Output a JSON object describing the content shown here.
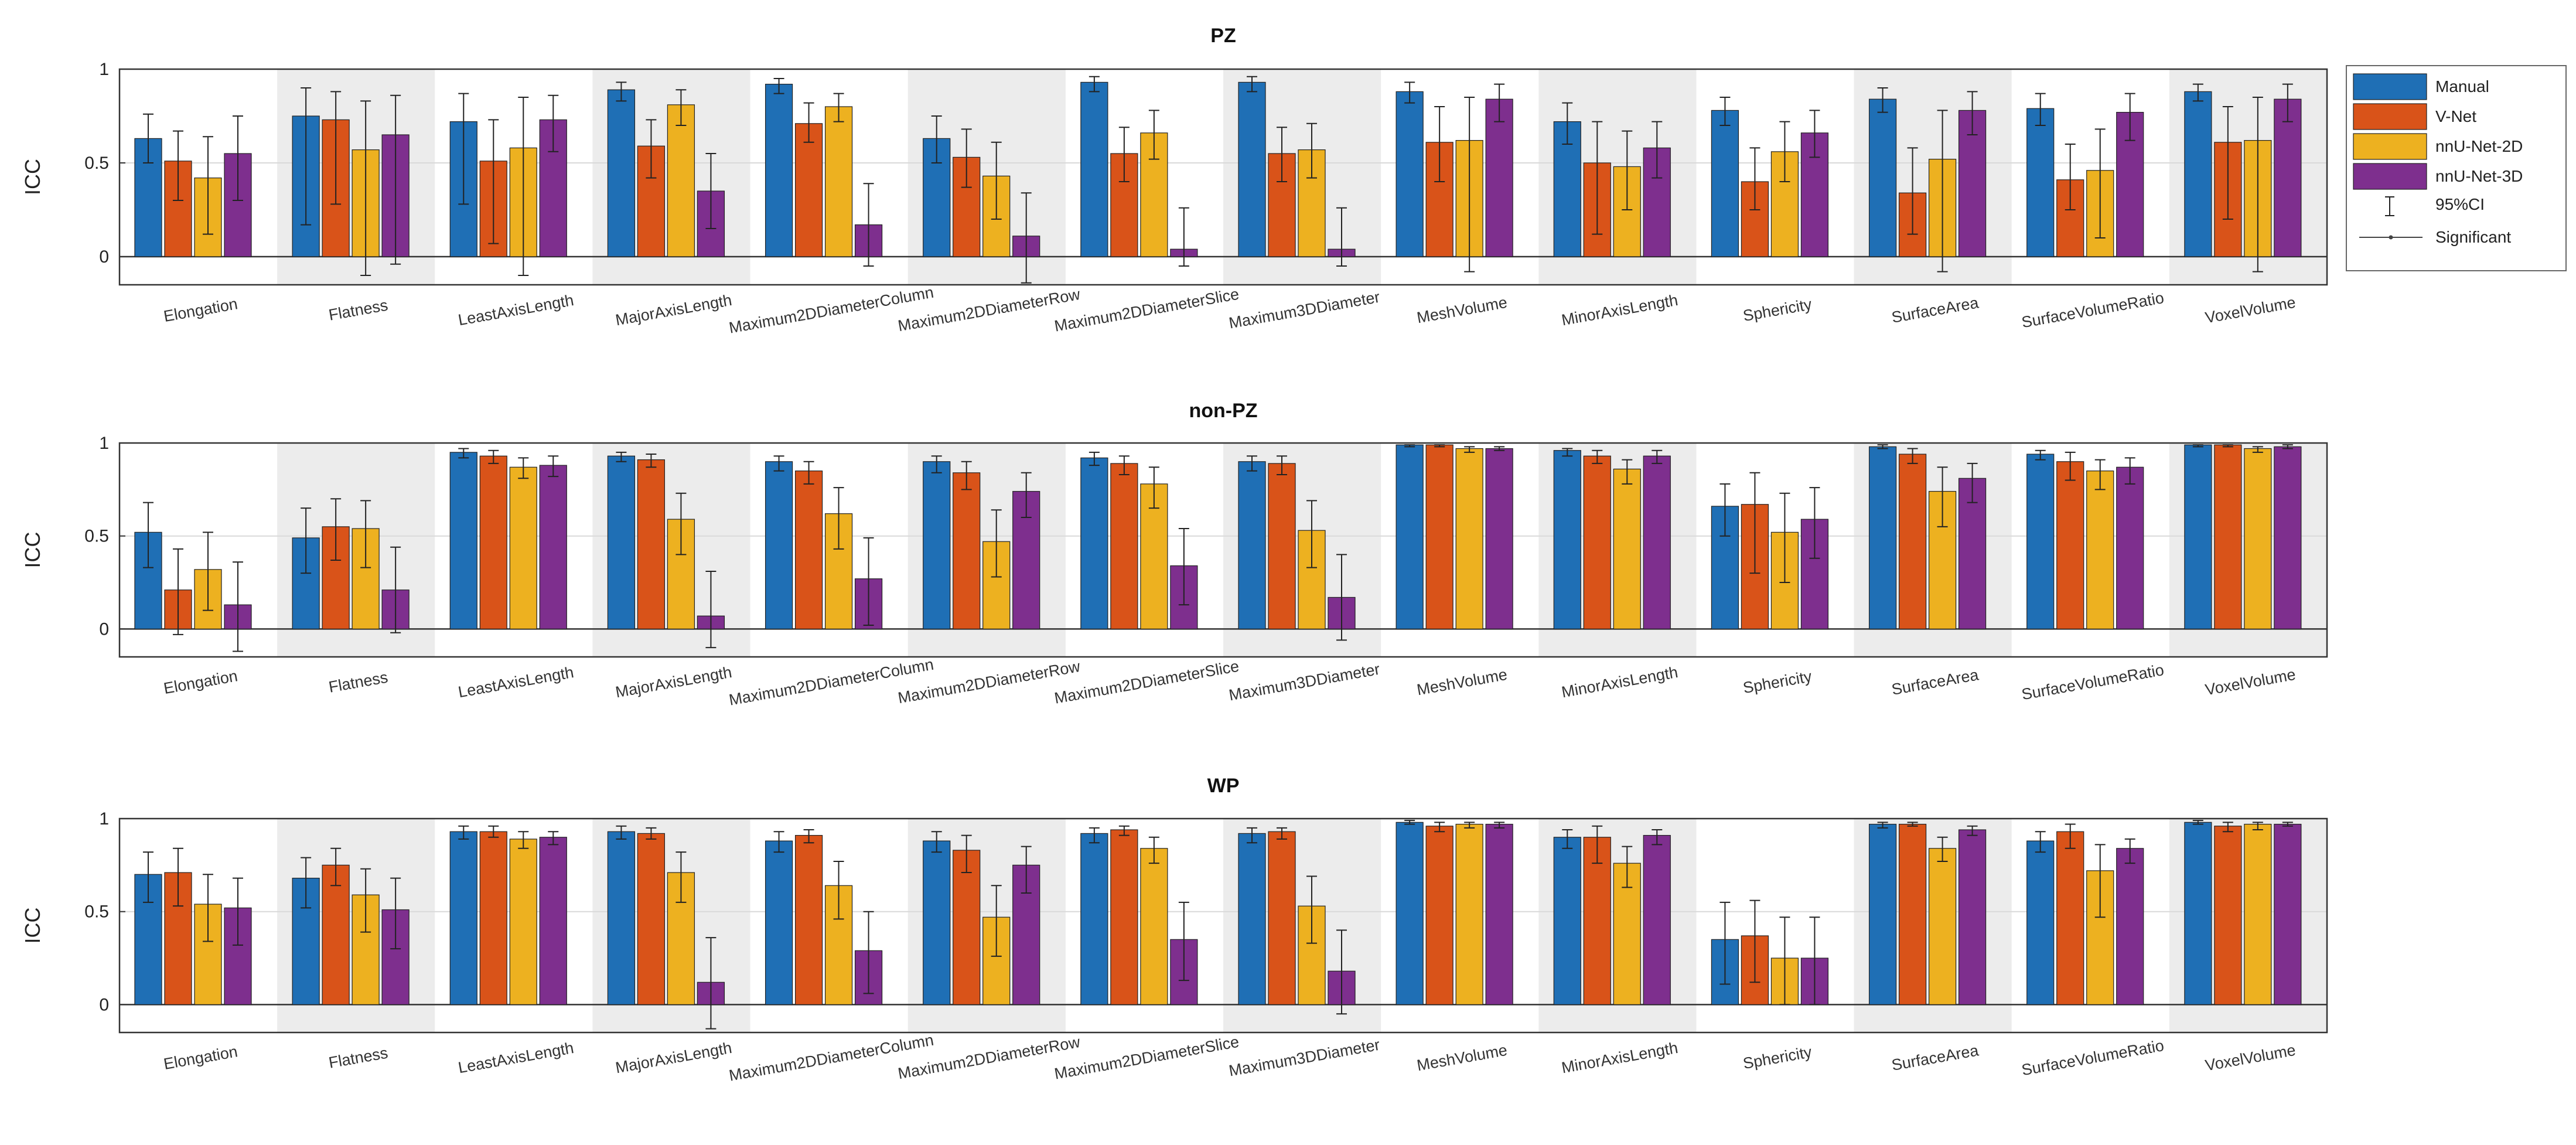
{
  "colors": {
    "Manual": "#1f6fb5",
    "V-Net": "#d95319",
    "nnU-Net-2D": "#edb120",
    "nnU-Net-3D": "#7e2f8e",
    "band": "#ececec"
  },
  "legend": {
    "entries": [
      "Manual",
      "V-Net",
      "nnU-Net-2D",
      "nnU-Net-3D"
    ],
    "ci_label": "95%CI",
    "sig_label": "Significant"
  },
  "chart_data": [
    {
      "type": "bar",
      "title": "PZ",
      "ylabel": "ICC",
      "ylim": [
        -0.15,
        1
      ],
      "yticks": [
        "0",
        "0.5",
        "1"
      ],
      "categories": [
        "Elongation",
        "Flatness",
        "LeastAxisLength",
        "MajorAxisLength",
        "Maximum2DDiameterColumn",
        "Maximum2DDiameterRow",
        "Maximum2DDiameterSlice",
        "Maximum3DDiameter",
        "MeshVolume",
        "MinorAxisLength",
        "Sphericity",
        "SurfaceArea",
        "SurfaceVolumeRatio",
        "VoxelVolume"
      ],
      "series": [
        {
          "name": "Manual",
          "values": [
            0.63,
            0.75,
            0.72,
            0.89,
            0.92,
            0.63,
            0.93,
            0.93,
            0.88,
            0.72,
            0.78,
            0.84,
            0.79,
            0.88
          ],
          "ci": [
            [
              0.5,
              0.76
            ],
            [
              0.17,
              0.9
            ],
            [
              0.28,
              0.87
            ],
            [
              0.83,
              0.93
            ],
            [
              0.87,
              0.95
            ],
            [
              0.5,
              0.75
            ],
            [
              0.88,
              0.96
            ],
            [
              0.88,
              0.96
            ],
            [
              0.82,
              0.93
            ],
            [
              0.6,
              0.82
            ],
            [
              0.7,
              0.85
            ],
            [
              0.77,
              0.9
            ],
            [
              0.7,
              0.87
            ],
            [
              0.83,
              0.92
            ]
          ]
        },
        {
          "name": "V-Net",
          "values": [
            0.51,
            0.73,
            0.51,
            0.59,
            0.71,
            0.53,
            0.55,
            0.55,
            0.61,
            0.5,
            0.4,
            0.34,
            0.41,
            0.61
          ],
          "ci": [
            [
              0.3,
              0.67
            ],
            [
              0.28,
              0.88
            ],
            [
              0.07,
              0.73
            ],
            [
              0.42,
              0.73
            ],
            [
              0.61,
              0.82
            ],
            [
              0.37,
              0.68
            ],
            [
              0.4,
              0.69
            ],
            [
              0.4,
              0.69
            ],
            [
              0.4,
              0.8
            ],
            [
              0.12,
              0.72
            ],
            [
              0.25,
              0.58
            ],
            [
              0.12,
              0.58
            ],
            [
              0.25,
              0.6
            ],
            [
              0.2,
              0.8
            ]
          ]
        },
        {
          "name": "nnU-Net-2D",
          "values": [
            0.42,
            0.57,
            0.58,
            0.81,
            0.8,
            0.43,
            0.66,
            0.57,
            0.62,
            0.48,
            0.56,
            0.52,
            0.46,
            0.62
          ],
          "ci": [
            [
              0.12,
              0.64
            ],
            [
              -0.1,
              0.83
            ],
            [
              -0.1,
              0.85
            ],
            [
              0.7,
              0.89
            ],
            [
              0.72,
              0.87
            ],
            [
              0.2,
              0.61
            ],
            [
              0.52,
              0.78
            ],
            [
              0.42,
              0.71
            ],
            [
              -0.08,
              0.85
            ],
            [
              0.25,
              0.67
            ],
            [
              0.4,
              0.72
            ],
            [
              -0.08,
              0.78
            ],
            [
              0.1,
              0.68
            ],
            [
              -0.08,
              0.85
            ]
          ]
        },
        {
          "name": "nnU-Net-3D",
          "values": [
            0.55,
            0.65,
            0.73,
            0.35,
            0.17,
            0.11,
            0.04,
            0.04,
            0.84,
            0.58,
            0.66,
            0.78,
            0.77,
            0.84
          ],
          "ci": [
            [
              0.3,
              0.75
            ],
            [
              -0.04,
              0.86
            ],
            [
              0.56,
              0.86
            ],
            [
              0.15,
              0.55
            ],
            [
              -0.05,
              0.39
            ],
            [
              -0.14,
              0.34
            ],
            [
              -0.05,
              0.26
            ],
            [
              -0.05,
              0.26
            ],
            [
              0.72,
              0.92
            ],
            [
              0.42,
              0.72
            ],
            [
              0.53,
              0.78
            ],
            [
              0.65,
              0.88
            ],
            [
              0.62,
              0.87
            ],
            [
              0.72,
              0.92
            ]
          ]
        }
      ]
    },
    {
      "type": "bar",
      "title": "non-PZ",
      "ylabel": "ICC",
      "ylim": [
        -0.15,
        1
      ],
      "yticks": [
        "0",
        "0.5",
        "1"
      ],
      "categories": [
        "Elongation",
        "Flatness",
        "LeastAxisLength",
        "MajorAxisLength",
        "Maximum2DDiameterColumn",
        "Maximum2DDiameterRow",
        "Maximum2DDiameterSlice",
        "Maximum3DDiameter",
        "MeshVolume",
        "MinorAxisLength",
        "Sphericity",
        "SurfaceArea",
        "SurfaceVolumeRatio",
        "VoxelVolume"
      ],
      "series": [
        {
          "name": "Manual",
          "values": [
            0.52,
            0.49,
            0.95,
            0.93,
            0.9,
            0.9,
            0.92,
            0.9,
            0.99,
            0.96,
            0.66,
            0.98,
            0.94,
            0.99
          ],
          "ci": [
            [
              0.33,
              0.68
            ],
            [
              0.3,
              0.65
            ],
            [
              0.92,
              0.97
            ],
            [
              0.9,
              0.95
            ],
            [
              0.85,
              0.93
            ],
            [
              0.84,
              0.93
            ],
            [
              0.88,
              0.95
            ],
            [
              0.85,
              0.93
            ],
            [
              0.98,
              0.99
            ],
            [
              0.93,
              0.97
            ],
            [
              0.5,
              0.78
            ],
            [
              0.97,
              0.99
            ],
            [
              0.91,
              0.96
            ],
            [
              0.98,
              0.99
            ]
          ]
        },
        {
          "name": "V-Net",
          "values": [
            0.21,
            0.55,
            0.93,
            0.91,
            0.85,
            0.84,
            0.89,
            0.89,
            0.99,
            0.93,
            0.67,
            0.94,
            0.9,
            0.99
          ],
          "ci": [
            [
              -0.03,
              0.43
            ],
            [
              0.37,
              0.7
            ],
            [
              0.89,
              0.96
            ],
            [
              0.87,
              0.94
            ],
            [
              0.78,
              0.9
            ],
            [
              0.75,
              0.9
            ],
            [
              0.83,
              0.93
            ],
            [
              0.83,
              0.93
            ],
            [
              0.98,
              0.99
            ],
            [
              0.89,
              0.96
            ],
            [
              0.3,
              0.84
            ],
            [
              0.89,
              0.97
            ],
            [
              0.8,
              0.95
            ],
            [
              0.98,
              0.99
            ]
          ]
        },
        {
          "name": "nnU-Net-2D",
          "values": [
            0.32,
            0.54,
            0.87,
            0.59,
            0.62,
            0.47,
            0.78,
            0.53,
            0.97,
            0.86,
            0.52,
            0.74,
            0.85,
            0.97
          ],
          "ci": [
            [
              0.1,
              0.52
            ],
            [
              0.33,
              0.69
            ],
            [
              0.81,
              0.92
            ],
            [
              0.4,
              0.73
            ],
            [
              0.43,
              0.76
            ],
            [
              0.28,
              0.64
            ],
            [
              0.65,
              0.87
            ],
            [
              0.33,
              0.69
            ],
            [
              0.95,
              0.98
            ],
            [
              0.78,
              0.91
            ],
            [
              0.25,
              0.73
            ],
            [
              0.55,
              0.87
            ],
            [
              0.75,
              0.91
            ],
            [
              0.95,
              0.98
            ]
          ]
        },
        {
          "name": "nnU-Net-3D",
          "values": [
            0.13,
            0.21,
            0.88,
            0.07,
            0.27,
            0.74,
            0.34,
            0.17,
            0.97,
            0.93,
            0.59,
            0.81,
            0.87,
            0.98
          ],
          "ci": [
            [
              -0.12,
              0.36
            ],
            [
              -0.02,
              0.44
            ],
            [
              0.82,
              0.93
            ],
            [
              -0.1,
              0.31
            ],
            [
              0.02,
              0.49
            ],
            [
              0.6,
              0.84
            ],
            [
              0.13,
              0.54
            ],
            [
              -0.06,
              0.4
            ],
            [
              0.96,
              0.98
            ],
            [
              0.89,
              0.96
            ],
            [
              0.38,
              0.76
            ],
            [
              0.68,
              0.89
            ],
            [
              0.78,
              0.92
            ],
            [
              0.97,
              0.99
            ]
          ]
        }
      ]
    },
    {
      "type": "bar",
      "title": "WP",
      "ylabel": "ICC",
      "ylim": [
        -0.15,
        1
      ],
      "yticks": [
        "0",
        "0.5",
        "1"
      ],
      "categories": [
        "Elongation",
        "Flatness",
        "LeastAxisLength",
        "MajorAxisLength",
        "Maximum2DDiameterColumn",
        "Maximum2DDiameterRow",
        "Maximum2DDiameterSlice",
        "Maximum3DDiameter",
        "MeshVolume",
        "MinorAxisLength",
        "Sphericity",
        "SurfaceArea",
        "SurfaceVolumeRatio",
        "VoxelVolume"
      ],
      "series": [
        {
          "name": "Manual",
          "values": [
            0.7,
            0.68,
            0.93,
            0.93,
            0.88,
            0.88,
            0.92,
            0.92,
            0.98,
            0.9,
            0.35,
            0.97,
            0.88,
            0.98
          ],
          "ci": [
            [
              0.55,
              0.82
            ],
            [
              0.52,
              0.79
            ],
            [
              0.89,
              0.96
            ],
            [
              0.89,
              0.96
            ],
            [
              0.82,
              0.93
            ],
            [
              0.82,
              0.93
            ],
            [
              0.87,
              0.95
            ],
            [
              0.87,
              0.95
            ],
            [
              0.97,
              0.99
            ],
            [
              0.84,
              0.94
            ],
            [
              0.11,
              0.55
            ],
            [
              0.95,
              0.98
            ],
            [
              0.82,
              0.93
            ],
            [
              0.97,
              0.99
            ]
          ]
        },
        {
          "name": "V-Net",
          "values": [
            0.71,
            0.75,
            0.93,
            0.92,
            0.91,
            0.83,
            0.94,
            0.93,
            0.96,
            0.9,
            0.37,
            0.97,
            0.93,
            0.96
          ],
          "ci": [
            [
              0.53,
              0.84
            ],
            [
              0.64,
              0.84
            ],
            [
              0.9,
              0.96
            ],
            [
              0.89,
              0.95
            ],
            [
              0.87,
              0.94
            ],
            [
              0.71,
              0.91
            ],
            [
              0.91,
              0.96
            ],
            [
              0.89,
              0.95
            ],
            [
              0.93,
              0.98
            ],
            [
              0.76,
              0.96
            ],
            [
              0.12,
              0.56
            ],
            [
              0.96,
              0.98
            ],
            [
              0.84,
              0.97
            ],
            [
              0.93,
              0.98
            ]
          ]
        },
        {
          "name": "nnU-Net-2D",
          "values": [
            0.54,
            0.59,
            0.89,
            0.71,
            0.64,
            0.47,
            0.84,
            0.53,
            0.97,
            0.76,
            0.25,
            0.84,
            0.72,
            0.97
          ],
          "ci": [
            [
              0.34,
              0.7
            ],
            [
              0.39,
              0.73
            ],
            [
              0.84,
              0.93
            ],
            [
              0.55,
              0.82
            ],
            [
              0.46,
              0.77
            ],
            [
              0.26,
              0.64
            ],
            [
              0.76,
              0.9
            ],
            [
              0.33,
              0.69
            ],
            [
              0.95,
              0.98
            ],
            [
              0.63,
              0.85
            ],
            [
              0.0,
              0.47
            ],
            [
              0.77,
              0.9
            ],
            [
              0.47,
              0.86
            ],
            [
              0.94,
              0.98
            ]
          ]
        },
        {
          "name": "nnU-Net-3D",
          "values": [
            0.52,
            0.51,
            0.9,
            0.12,
            0.29,
            0.75,
            0.35,
            0.18,
            0.97,
            0.91,
            0.25,
            0.94,
            0.84,
            0.97
          ],
          "ci": [
            [
              0.32,
              0.68
            ],
            [
              0.3,
              0.68
            ],
            [
              0.86,
              0.93
            ],
            [
              -0.13,
              0.36
            ],
            [
              0.06,
              0.5
            ],
            [
              0.6,
              0.85
            ],
            [
              0.13,
              0.55
            ],
            [
              -0.05,
              0.4
            ],
            [
              0.95,
              0.98
            ],
            [
              0.86,
              0.94
            ],
            [
              0.0,
              0.47
            ],
            [
              0.91,
              0.96
            ],
            [
              0.76,
              0.89
            ],
            [
              0.96,
              0.98
            ]
          ]
        }
      ]
    }
  ]
}
